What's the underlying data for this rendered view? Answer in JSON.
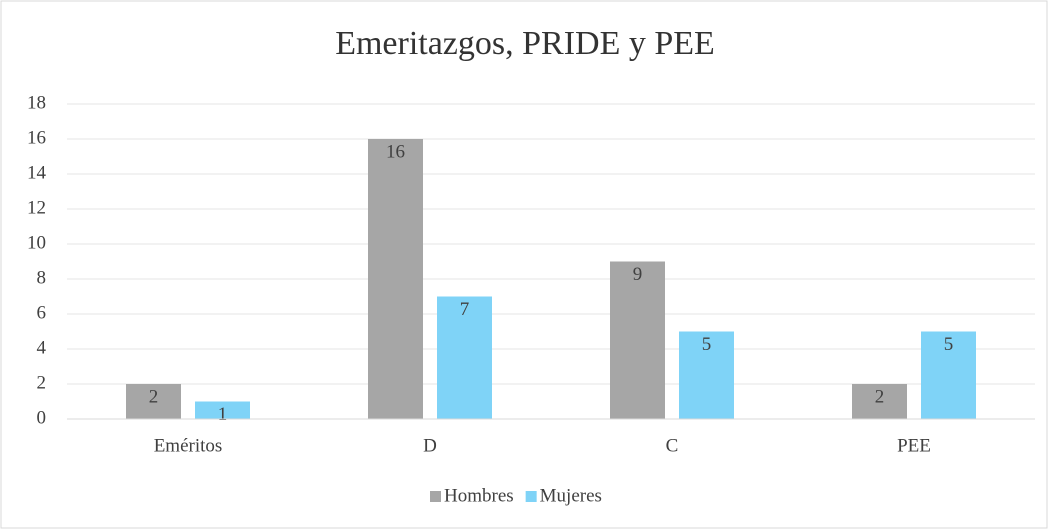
{
  "chart_data": {
    "type": "bar",
    "title": "Emeritazgos, PRIDE y PEE",
    "categories": [
      "Eméritos",
      "D",
      "C",
      "PEE"
    ],
    "series": [
      {
        "name": "Hombres",
        "color": "#a6a6a6",
        "values": [
          2,
          16,
          9,
          2
        ]
      },
      {
        "name": "Mujeres",
        "color": "#7fd3f7",
        "values": [
          1,
          7,
          5,
          5
        ]
      }
    ],
    "ylim": [
      0,
      18
    ],
    "yticks": [
      0,
      2,
      4,
      6,
      8,
      10,
      12,
      14,
      16,
      18
    ],
    "grid": true,
    "legend": "bottom"
  }
}
